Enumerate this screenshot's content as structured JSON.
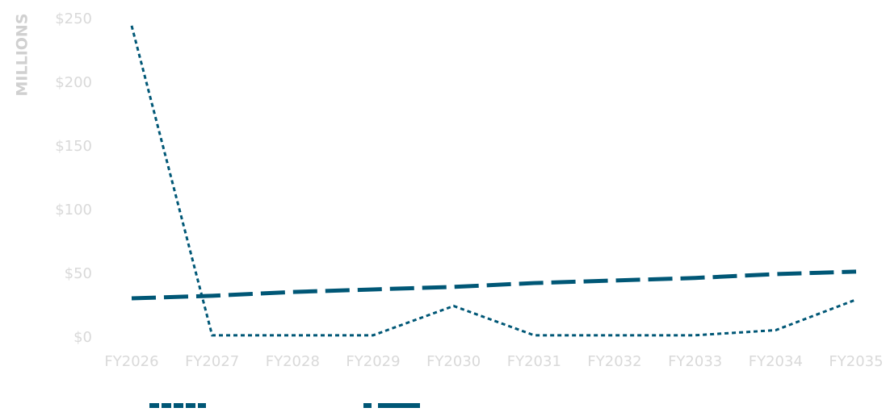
{
  "chart_data": {
    "type": "line",
    "y_label": "MILLIONS",
    "categories": [
      "FY2026",
      "FY2027",
      "FY2028",
      "FY2029",
      "FY2030",
      "FY2031",
      "FY2032",
      "FY2033",
      "FY2034",
      "FY2035"
    ],
    "series": [
      {
        "color": "#005776",
        "dash": "dotted",
        "values": [
          245,
          2,
          2,
          2,
          25,
          2,
          2,
          2,
          6,
          30
        ]
      },
      {
        "color": "#005776",
        "dash": "dashed",
        "values": [
          31,
          33,
          36,
          38,
          40,
          43,
          45,
          47,
          50,
          52
        ]
      }
    ],
    "ylim": [
      0,
      250
    ],
    "yticks": [
      {
        "value": 0,
        "label": "$0"
      },
      {
        "value": 50,
        "label": "$50"
      },
      {
        "value": 100,
        "label": "$100"
      },
      {
        "value": 150,
        "label": "$150"
      },
      {
        "value": 200,
        "label": "$200"
      },
      {
        "value": 250,
        "label": "$250"
      }
    ],
    "grid": false,
    "legend": "bottom"
  }
}
